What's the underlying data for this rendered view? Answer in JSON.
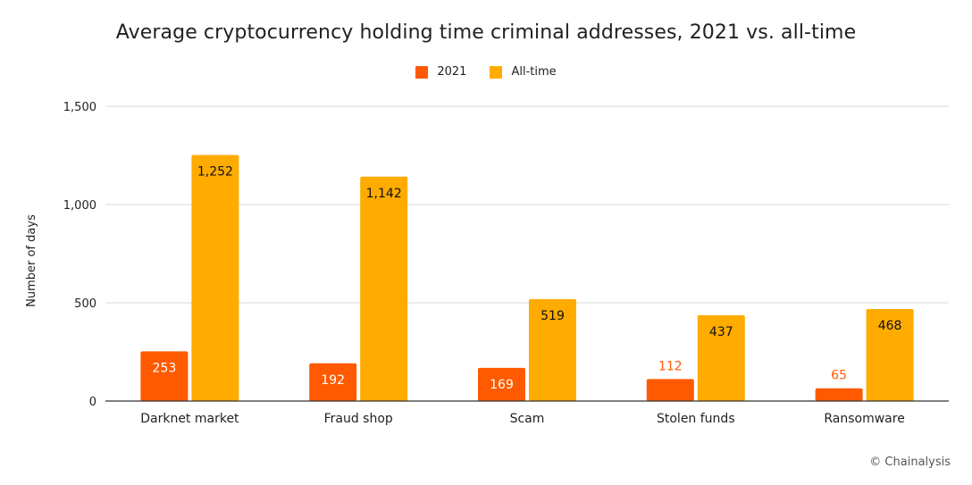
{
  "chart_data": {
    "type": "bar",
    "title": "Average cryptocurrency holding time criminal addresses, 2021 vs. all-time",
    "xlabel": "",
    "ylabel": "Number of days",
    "categories": [
      "Darknet market",
      "Fraud shop",
      "Scam",
      "Stolen funds",
      "Ransomware"
    ],
    "series": [
      {
        "name": "2021",
        "color": "#ff5a00",
        "values": [
          253,
          192,
          169,
          112,
          65
        ]
      },
      {
        "name": "All-time",
        "color": "#ffab00",
        "values": [
          1252,
          1142,
          519,
          437,
          468
        ]
      }
    ],
    "data_labels": [
      [
        "253",
        "192",
        "169",
        "112",
        "65"
      ],
      [
        "1,252",
        "1,142",
        "519",
        "437",
        "468"
      ]
    ],
    "ylim": [
      0,
      1500
    ],
    "yticks": [
      0,
      500,
      1000,
      1500
    ],
    "ytick_labels": [
      "0",
      "500",
      "1,000",
      "1,500"
    ],
    "grid": true,
    "legend_position": "top-center"
  },
  "credit": "© Chainalysis"
}
